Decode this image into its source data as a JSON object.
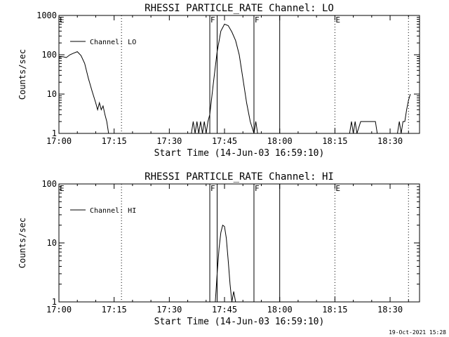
{
  "chart_data": [
    {
      "type": "line",
      "title": "RHESSI PARTICLE_RATE Channel: LO",
      "xlabel": "Start Time (14-Jun-03 16:59:10)",
      "ylabel": "Counts/sec",
      "y_scale": "log",
      "ylim": [
        1,
        1000
      ],
      "y_ticks": [
        1,
        10,
        100,
        1000
      ],
      "y_tick_labels": [
        "1",
        "10",
        "100",
        "1000"
      ],
      "x_ticks": [
        "17:00",
        "17:15",
        "17:30",
        "17:45",
        "18:00",
        "18:15",
        "18:30"
      ],
      "x_range": [
        "17:00",
        "18:38"
      ],
      "legend": {
        "placement": "top-left",
        "entries": [
          "Channel: LO"
        ]
      },
      "dotted_lines": [
        "17:17",
        "18:15",
        "18:35"
      ],
      "solid_lines": [
        "17:41",
        "17:43",
        "17:53",
        "18:00"
      ],
      "markers": [
        {
          "label": "E",
          "time": "17:00"
        },
        {
          "label": "F",
          "time": "17:41"
        },
        {
          "label": "F",
          "time": "17:53"
        },
        {
          "label": "E",
          "time": "18:15"
        }
      ],
      "series": [
        {
          "name": "Channel: LO",
          "x": [
            "17:00",
            "17:01",
            "17:02",
            "17:03",
            "17:04",
            "17:05",
            "17:06",
            "17:07",
            "17:08",
            "17:09",
            "17:10",
            "17:10.5",
            "17:11",
            "17:11.5",
            "17:12",
            "17:12.5",
            "17:13",
            "17:13.5",
            "17:36",
            "17:36.5",
            "17:37",
            "17:37.5",
            "17:38",
            "17:38.5",
            "17:39",
            "17:39.5",
            "17:40",
            "17:40.5",
            "17:41",
            "17:42",
            "17:43",
            "17:44",
            "17:45",
            "17:46",
            "17:47",
            "17:48",
            "17:49",
            "17:50",
            "17:51",
            "17:52",
            "17:53",
            "17:53.5",
            "17:54",
            "17:54.5",
            "18:19",
            "18:19.5",
            "18:20",
            "18:20.5",
            "18:21",
            "18:22",
            "18:23",
            "18:24",
            "18:25",
            "18:26",
            "18:26.5",
            "18:27",
            "18:32",
            "18:32.5",
            "18:33",
            "18:33.5",
            "18:34",
            "18:34.5",
            "18:35",
            "18:35.5"
          ],
          "values": [
            85,
            90,
            85,
            100,
            110,
            120,
            95,
            60,
            25,
            12,
            6,
            4,
            6,
            4,
            5,
            3,
            2,
            1,
            1,
            2,
            1,
            2,
            1,
            2,
            1,
            2,
            1,
            2,
            3,
            20,
            120,
            400,
            600,
            550,
            380,
            230,
            100,
            25,
            6,
            2,
            1,
            2,
            1,
            1,
            1,
            2,
            1,
            2,
            1,
            2,
            2,
            2,
            2,
            2,
            1,
            1,
            1,
            2,
            1,
            2,
            2,
            4,
            7,
            10
          ]
        }
      ]
    },
    {
      "type": "line",
      "title": "RHESSI PARTICLE_RATE Channel: HI",
      "xlabel": "Start Time (14-Jun-03 16:59:10)",
      "ylabel": "Counts/sec",
      "y_scale": "log",
      "ylim": [
        1,
        100
      ],
      "y_ticks": [
        1,
        10,
        100
      ],
      "y_tick_labels": [
        "1",
        "10",
        "100"
      ],
      "x_ticks": [
        "17:00",
        "17:15",
        "17:30",
        "17:45",
        "18:00",
        "18:15",
        "18:30"
      ],
      "x_range": [
        "17:00",
        "18:38"
      ],
      "legend": {
        "placement": "top-left",
        "entries": [
          "Channel: HI"
        ]
      },
      "dotted_lines": [
        "17:17",
        "18:15",
        "18:35"
      ],
      "solid_lines": [
        "17:41",
        "17:43",
        "17:53",
        "18:00"
      ],
      "markers": [
        {
          "label": "E",
          "time": "17:00"
        },
        {
          "label": "F",
          "time": "17:41"
        },
        {
          "label": "F",
          "time": "17:53"
        },
        {
          "label": "E",
          "time": "18:15"
        }
      ],
      "series": [
        {
          "name": "Channel: HI",
          "x": [
            "17:42.5",
            "17:43",
            "17:43.5",
            "17:44",
            "17:44.5",
            "17:45",
            "17:45.5",
            "17:46",
            "17:46.5",
            "17:47",
            "17:47.5",
            "17:48"
          ],
          "values": [
            1,
            3,
            8,
            15,
            20,
            19,
            12,
            5,
            2,
            1,
            1.5,
            1
          ]
        }
      ]
    }
  ],
  "footer": {
    "timestamp": "19-Oct-2021 15:28"
  }
}
